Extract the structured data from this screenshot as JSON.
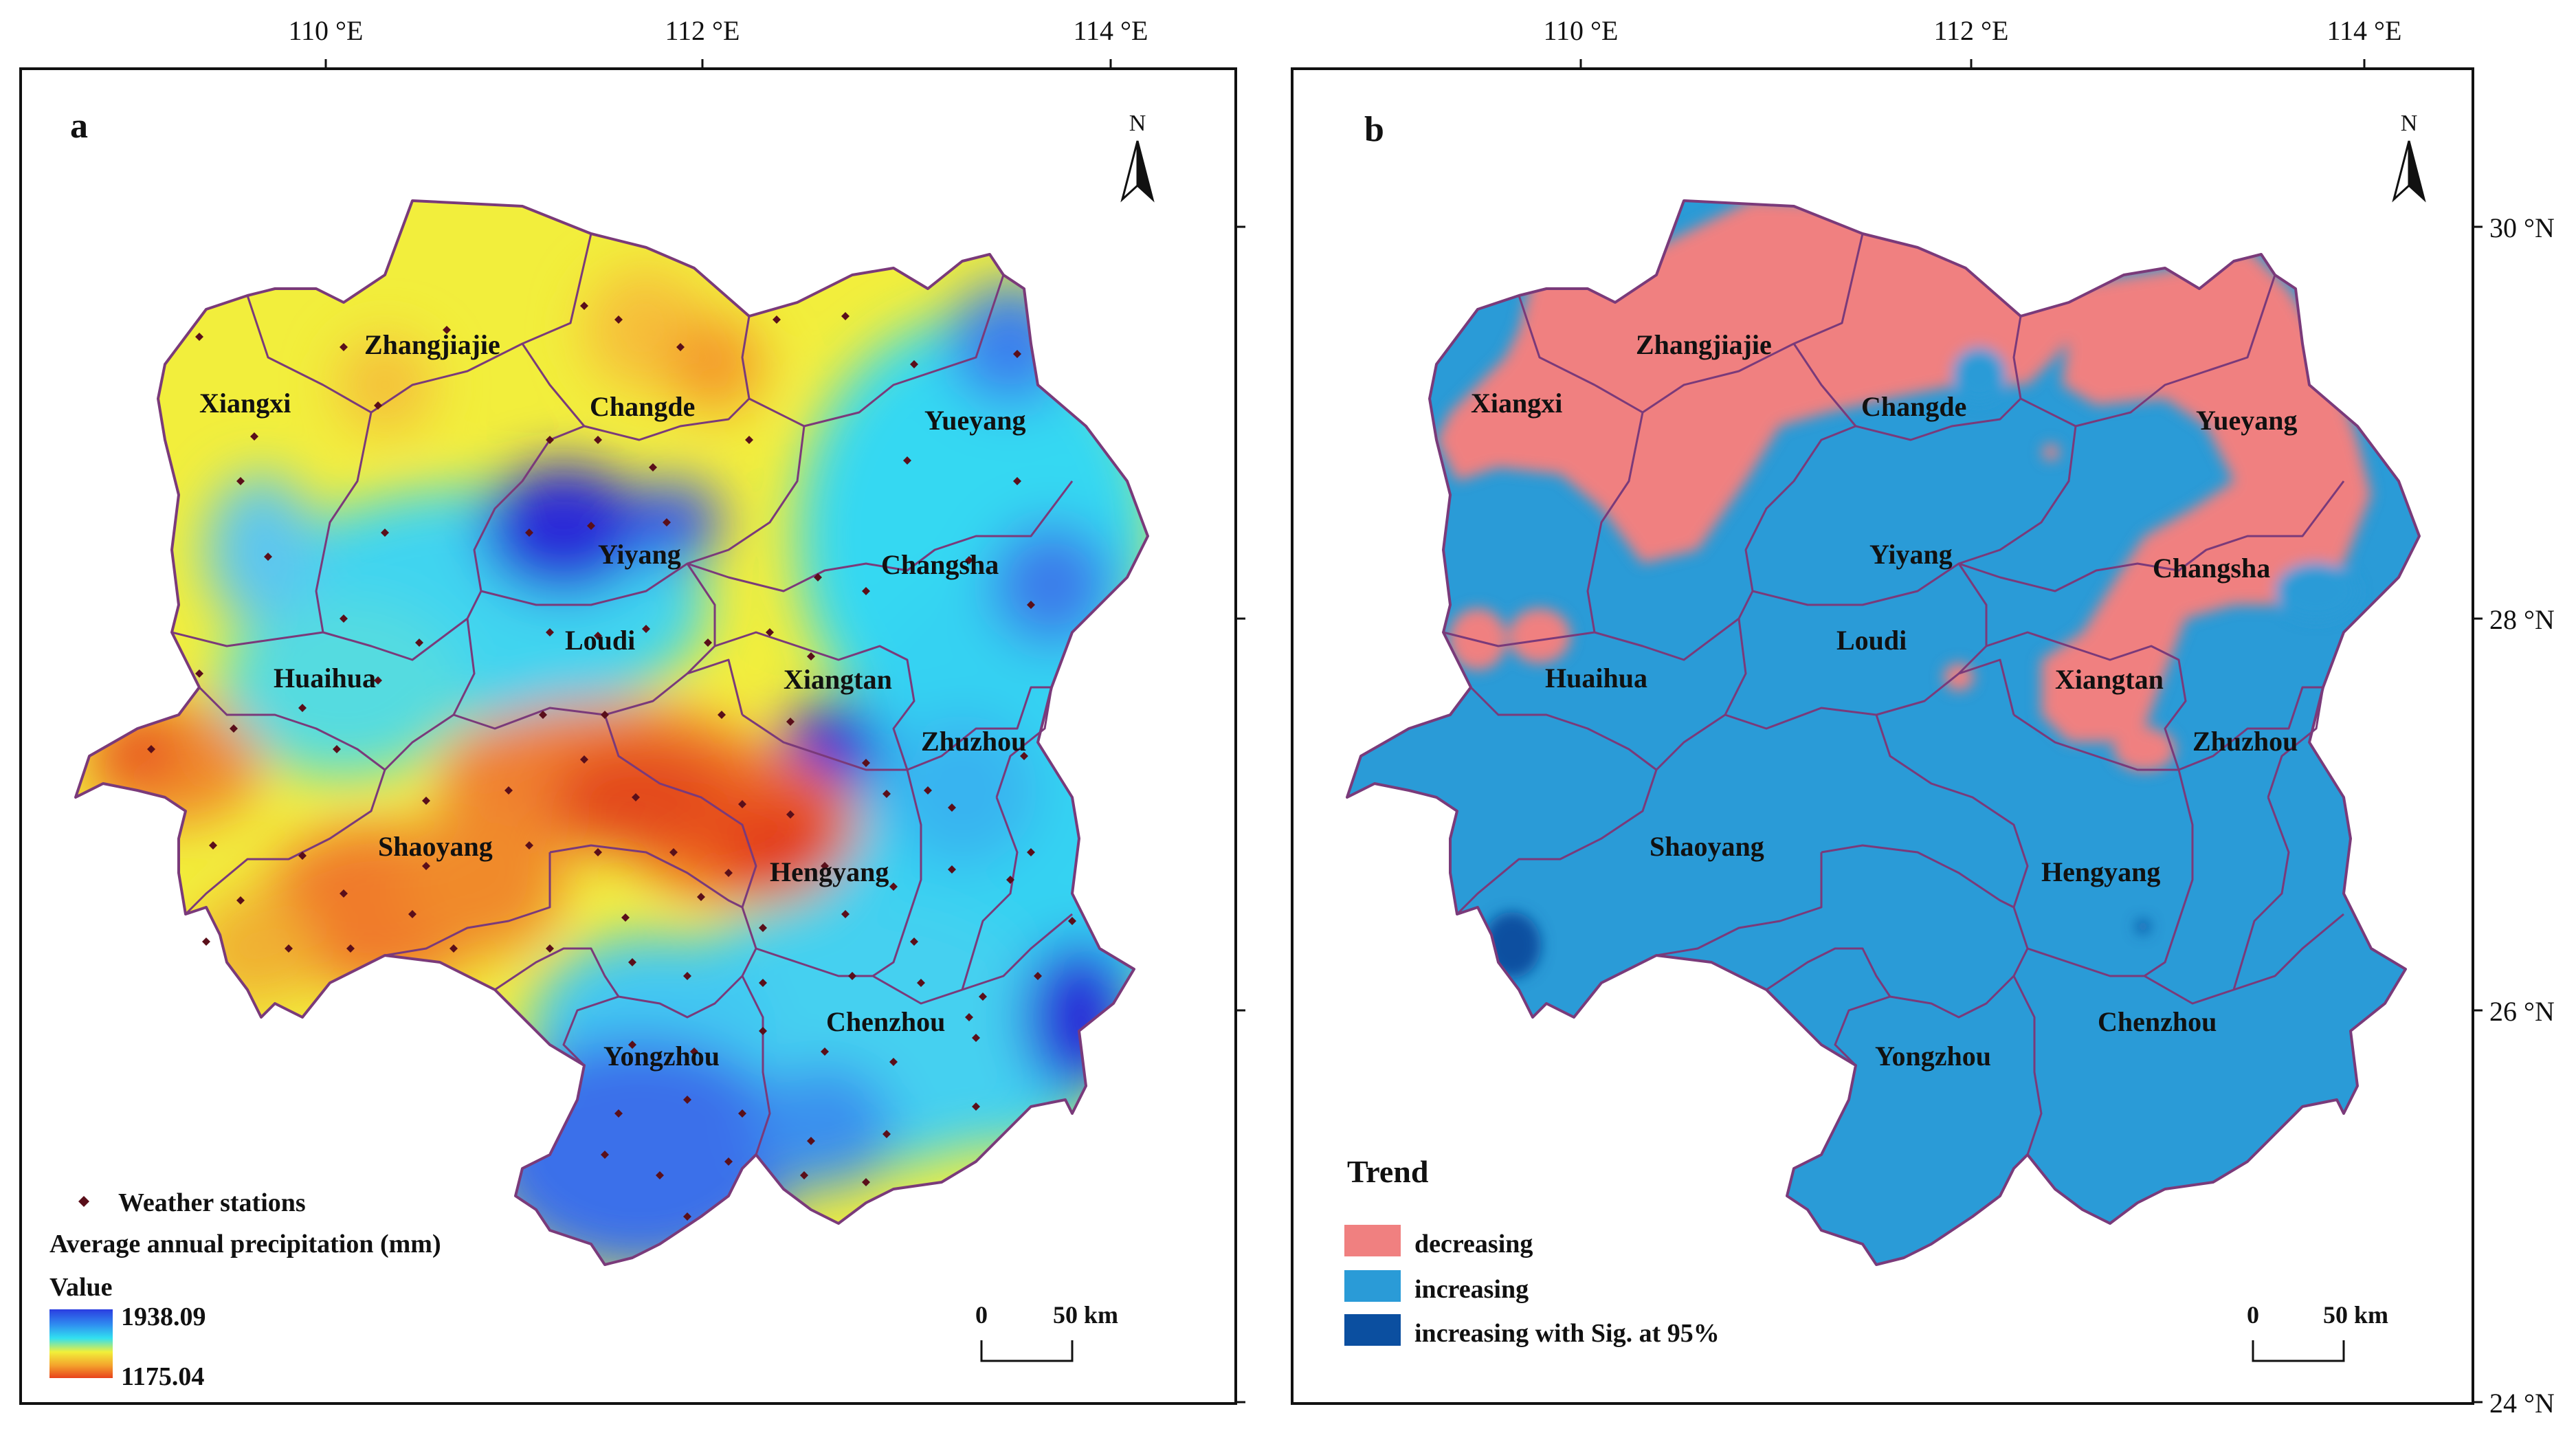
{
  "top_axis": {
    "labels": [
      "110 °E",
      "112 °E",
      "114 °E"
    ]
  },
  "right_axis": {
    "labels": [
      "30 °N",
      "28 °N",
      "26 °N",
      "24 °N"
    ]
  },
  "panel_a": {
    "letter": "a",
    "north": "N",
    "cities": [
      "Zhangjiajie",
      "Xiangxi",
      "Changde",
      "Yueyang",
      "Yiyang",
      "Changsha",
      "Loudi",
      "Huaihua",
      "Xiangtan",
      "Zhuzhou",
      "Shaoyang",
      "Hengyang",
      "Chenzhou",
      "Yongzhou"
    ],
    "legend": {
      "stations": "Weather stations",
      "title": "Average annual precipitation (mm)",
      "value_heading": "Value",
      "max": "1938.09",
      "min": "1175.04",
      "colors": [
        "#2b3de0",
        "#2f8cf0",
        "#31e0f0",
        "#f2f03a",
        "#f4a12c",
        "#e8421c"
      ]
    },
    "scale": {
      "zero": "0",
      "label": "50 km"
    }
  },
  "panel_b": {
    "letter": "b",
    "north": "N",
    "cities": [
      "Zhangjiajie",
      "Xiangxi",
      "Changde",
      "Yueyang",
      "Yiyang",
      "Changsha",
      "Loudi",
      "Huaihua",
      "Xiangtan",
      "Zhuzhou",
      "Shaoyang",
      "Hengyang",
      "Chenzhou",
      "Yongzhou"
    ],
    "legend": {
      "title": "Trend",
      "items": [
        {
          "label": "decreasing",
          "color": "#f08080"
        },
        {
          "label": "increasing",
          "color": "#2a9bd7"
        },
        {
          "label": "increasing with Sig. at 95%",
          "color": "#0b4fa0"
        }
      ]
    },
    "scale": {
      "zero": "0",
      "label": "50 km"
    }
  }
}
